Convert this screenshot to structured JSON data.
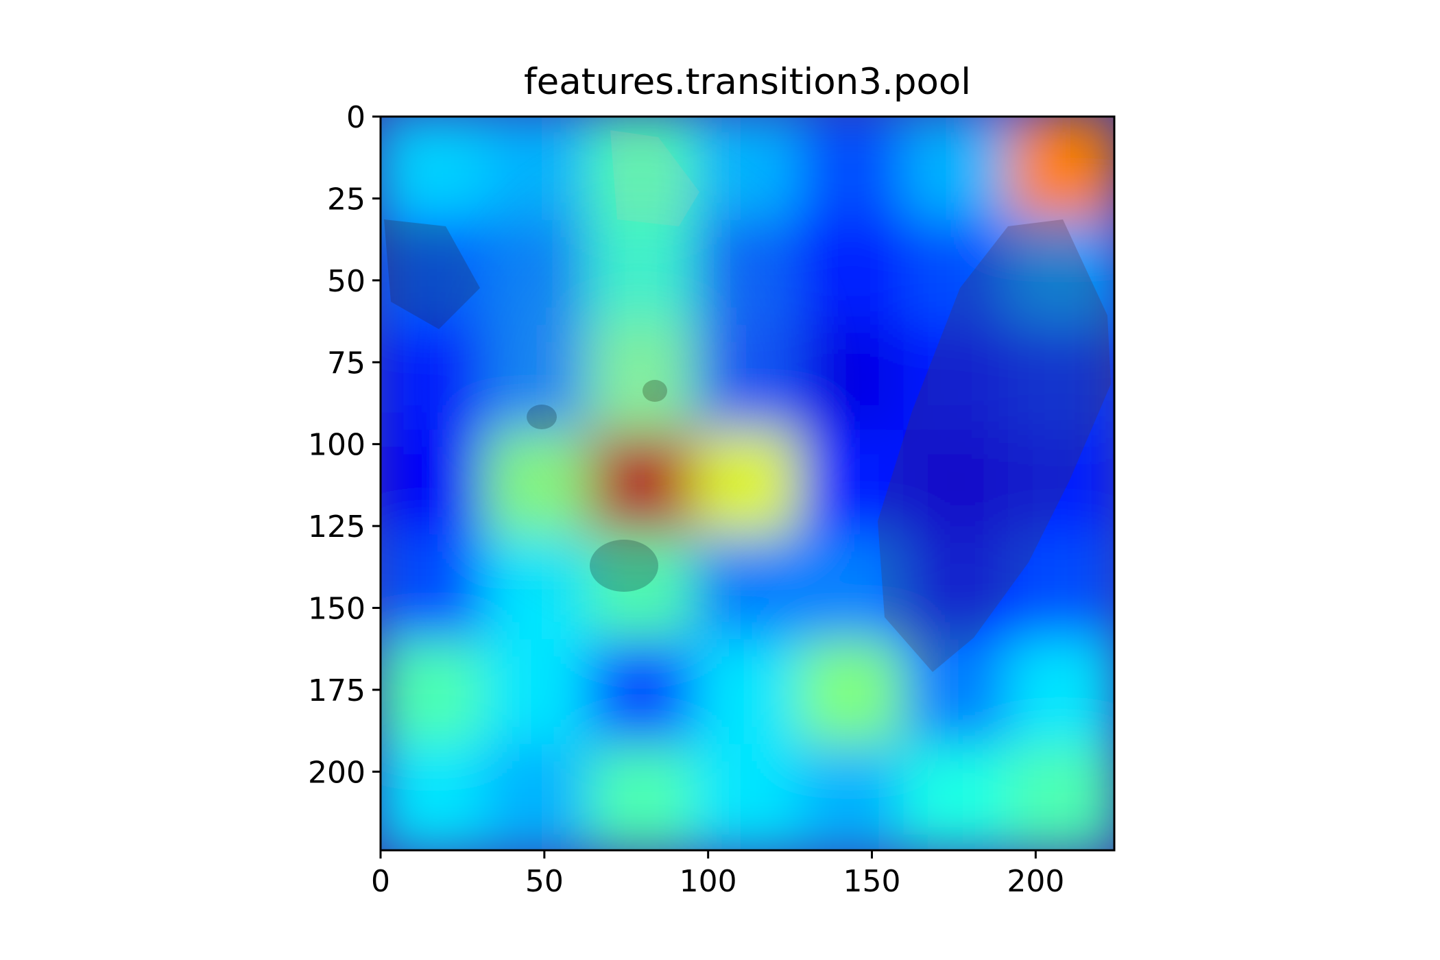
{
  "chart_data": {
    "type": "heatmap",
    "title": "features.transition3.pool",
    "xlabel": "",
    "ylabel": "",
    "xlim": [
      0,
      224
    ],
    "ylim": [
      224,
      0
    ],
    "y_axis_inverted": true,
    "grid": false,
    "legend": "none",
    "colormap": "jet",
    "overlay": "heatmap blended over a photo of a bear cub",
    "x_ticks": [
      {
        "value": 0,
        "label": "0"
      },
      {
        "value": 50,
        "label": "50"
      },
      {
        "value": 100,
        "label": "100"
      },
      {
        "value": 150,
        "label": "150"
      },
      {
        "value": 200,
        "label": "200"
      }
    ],
    "y_ticks": [
      {
        "value": 0,
        "label": "0"
      },
      {
        "value": 25,
        "label": "25"
      },
      {
        "value": 50,
        "label": "50"
      },
      {
        "value": 75,
        "label": "75"
      },
      {
        "value": 100,
        "label": "100"
      },
      {
        "value": 125,
        "label": "125"
      },
      {
        "value": 150,
        "label": "150"
      },
      {
        "value": 175,
        "label": "175"
      },
      {
        "value": 200,
        "label": "200"
      }
    ],
    "heat_grid": {
      "rows": 7,
      "cols": 7,
      "cell_size": 32,
      "values": [
        [
          0.33,
          0.3,
          0.45,
          0.3,
          0.2,
          0.3,
          0.75
        ],
        [
          0.22,
          0.25,
          0.42,
          0.22,
          0.15,
          0.2,
          0.28
        ],
        [
          0.15,
          0.25,
          0.48,
          0.2,
          0.1,
          0.15,
          0.18
        ],
        [
          0.12,
          0.5,
          0.95,
          0.6,
          0.15,
          0.12,
          0.15
        ],
        [
          0.2,
          0.35,
          0.45,
          0.25,
          0.25,
          0.15,
          0.2
        ],
        [
          0.45,
          0.35,
          0.2,
          0.35,
          0.5,
          0.25,
          0.35
        ],
        [
          0.35,
          0.3,
          0.45,
          0.35,
          0.3,
          0.4,
          0.45
        ]
      ]
    }
  }
}
